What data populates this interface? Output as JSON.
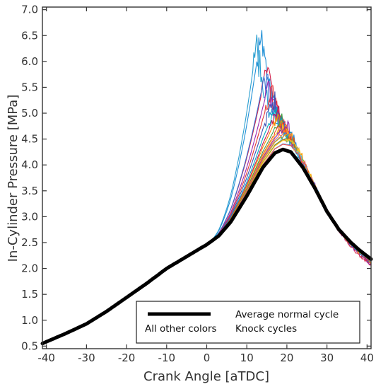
{
  "chart_data": {
    "type": "line",
    "xlabel": "Crank Angle [aTDC]",
    "ylabel": "In-Cylinder Pressure [MPa]",
    "xlim": [
      -41,
      41
    ],
    "ylim": [
      0.45,
      7.05
    ],
    "xticks": [
      -40,
      -30,
      -20,
      -10,
      0,
      10,
      20,
      30,
      40
    ],
    "yticks": [
      0.5,
      1.0,
      1.5,
      2.0,
      2.5,
      3.0,
      3.5,
      4.0,
      4.5,
      5.0,
      5.5,
      6.0,
      6.5,
      7.0
    ],
    "ytick_labels": [
      "0.5",
      "1.0",
      "1.5",
      "2.0",
      "2.5",
      "3.0",
      "3.5",
      "4.0",
      "4.5",
      "5.0",
      "5.5",
      "6.0",
      "6.5",
      "7.0"
    ],
    "grid": false,
    "legend_position": "bottom-right",
    "legend": [
      {
        "line_label": "",
        "text": "Average normal cycle",
        "color": "#000000"
      },
      {
        "line_label": "All other colors",
        "text": "Knock cycles"
      }
    ],
    "average_normal_cycle": {
      "color": "#000000",
      "x": [
        -41,
        -35,
        -30,
        -25,
        -20,
        -15,
        -10,
        -5,
        -2,
        0,
        3,
        6,
        10,
        14,
        17,
        19,
        21,
        24,
        27,
        30,
        33,
        36,
        38,
        41
      ],
      "y": [
        0.55,
        0.75,
        0.93,
        1.17,
        1.44,
        1.71,
        2.0,
        2.23,
        2.37,
        2.46,
        2.63,
        2.9,
        3.4,
        3.95,
        4.23,
        4.3,
        4.25,
        3.95,
        3.55,
        3.1,
        2.75,
        2.5,
        2.36,
        2.18
      ]
    },
    "knock_cycles": [
      {
        "color": "#1f8fd6",
        "onset_x": 14,
        "peak_x": 13.5,
        "peak_y": 6.55,
        "end_y": 2.1
      },
      {
        "color": "#2a9fd0",
        "onset_x": 13,
        "peak_x": 12.5,
        "peak_y": 6.4,
        "end_y": 2.15
      },
      {
        "color": "#d6204a",
        "onset_x": 15,
        "peak_x": 15.0,
        "peak_y": 5.85,
        "end_y": 2.05
      },
      {
        "color": "#3c6fd0",
        "onset_x": 15,
        "peak_x": 14.5,
        "peak_y": 5.75,
        "end_y": 2.12
      },
      {
        "color": "#9c27b0",
        "onset_x": 16,
        "peak_x": 15.5,
        "peak_y": 5.55,
        "end_y": 2.08
      },
      {
        "color": "#e53935",
        "onset_x": 16,
        "peak_x": 16.0,
        "peak_y": 5.4,
        "end_y": 2.1
      },
      {
        "color": "#3f51b5",
        "onset_x": 16,
        "peak_x": 16.5,
        "peak_y": 5.25,
        "end_y": 2.14
      },
      {
        "color": "#00acc1",
        "onset_x": 17,
        "peak_x": 17.0,
        "peak_y": 5.1,
        "end_y": 2.12
      },
      {
        "color": "#c2185b",
        "onset_x": 17,
        "peak_x": 17.5,
        "peak_y": 5.0,
        "end_y": 2.1
      },
      {
        "color": "#fb8c00",
        "onset_x": 18,
        "peak_x": 18.0,
        "peak_y": 4.95,
        "end_y": 2.12
      },
      {
        "color": "#43a047",
        "onset_x": 18,
        "peak_x": 18.5,
        "peak_y": 4.85,
        "end_y": 2.16
      },
      {
        "color": "#f4511e",
        "onset_x": 18,
        "peak_x": 19.0,
        "peak_y": 4.8,
        "end_y": 2.12
      },
      {
        "color": "#fbc02d",
        "onset_x": 19,
        "peak_x": 19.5,
        "peak_y": 4.75,
        "end_y": 2.14
      },
      {
        "color": "#8e24aa",
        "onset_x": 19,
        "peak_x": 20.0,
        "peak_y": 4.7,
        "end_y": 2.12
      },
      {
        "color": "#ff7043",
        "onset_x": 19,
        "peak_x": 20.5,
        "peak_y": 4.65,
        "end_y": 2.15
      },
      {
        "color": "#1e88e5",
        "onset_x": 20,
        "peak_x": 21.0,
        "peak_y": 4.6,
        "end_y": 2.13
      },
      {
        "color": "#ffa000",
        "onset_x": 20,
        "peak_x": 21.5,
        "peak_y": 4.55,
        "end_y": 2.16
      },
      {
        "color": "#26a69a",
        "onset_x": 20,
        "peak_x": 20.5,
        "peak_y": 4.5,
        "end_y": 2.14
      },
      {
        "color": "#e65100",
        "onset_x": 21,
        "peak_x": 21.5,
        "peak_y": 4.45,
        "end_y": 2.16
      },
      {
        "color": "#7cb342",
        "onset_x": 21,
        "peak_x": 22.0,
        "peak_y": 4.4,
        "end_y": 2.15
      },
      {
        "color": "#ffca28",
        "onset_x": 21,
        "peak_x": 22.5,
        "peak_y": 4.35,
        "end_y": 2.17
      },
      {
        "color": "#5c6bc0",
        "onset_x": 22,
        "peak_x": 22.0,
        "peak_y": 4.3,
        "end_y": 2.16
      },
      {
        "color": "#4fc3f7",
        "onset_x": 22,
        "peak_x": 22.5,
        "peak_y": 4.25,
        "end_y": 2.18
      },
      {
        "color": "#ef5350",
        "onset_x": 22,
        "peak_x": 23.0,
        "peak_y": 4.2,
        "end_y": 2.16
      }
    ]
  }
}
